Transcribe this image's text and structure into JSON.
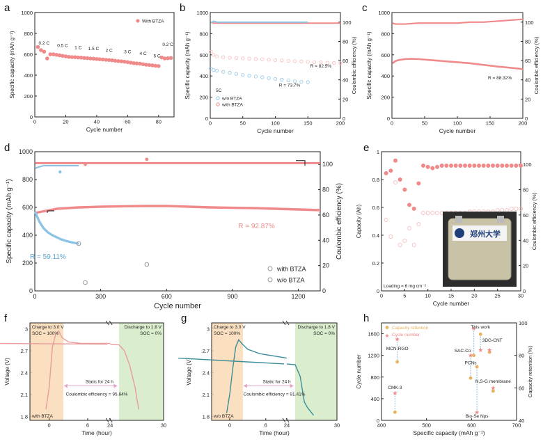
{
  "colors": {
    "pink": "#f08a8a",
    "pink_light": "#f7b9b9",
    "blue": "#8cc4e6",
    "blue_dark": "#5aa6d4",
    "teal": "#3a8f9a",
    "orange_band": "#f9d9b5",
    "green_band": "#d6ecc8",
    "gold": "#e9b25f",
    "axis": "#222222"
  },
  "chart_data": [
    {
      "panel": "a",
      "type": "scatter",
      "xlabel": "Cycle number",
      "ylabel": "Specific capacity (mAh g⁻¹)",
      "xlim": [
        0,
        90
      ],
      "ylim": [
        0,
        1000
      ],
      "xticks": [
        0,
        20,
        40,
        60,
        80
      ],
      "yticks": [
        0,
        200,
        400,
        600,
        800,
        1000
      ],
      "series": [
        {
          "name": "With BTZA",
          "x": [
            2,
            4,
            6,
            8,
            10,
            12,
            14,
            16,
            18,
            20,
            22,
            24,
            26,
            28,
            30,
            32,
            34,
            36,
            38,
            40,
            42,
            44,
            46,
            48,
            50,
            52,
            54,
            56,
            58,
            60,
            62,
            64,
            66,
            68,
            70,
            72,
            74,
            76,
            78,
            80,
            82,
            84,
            86,
            88
          ],
          "y": [
            670,
            640,
            625,
            560,
            600,
            600,
            595,
            590,
            585,
            580,
            575,
            573,
            572,
            570,
            568,
            565,
            563,
            560,
            558,
            555,
            552,
            550,
            547,
            545,
            542,
            538,
            535,
            532,
            529,
            525,
            520,
            515,
            512,
            510,
            505,
            500,
            497,
            494,
            490,
            487,
            570,
            560,
            562,
            565
          ]
        }
      ],
      "annotations": [
        {
          "text": "0.2 C",
          "x": 6,
          "y": 655
        },
        {
          "text": "0.5 C",
          "x": 18,
          "y": 630
        },
        {
          "text": "1 C",
          "x": 28,
          "y": 610
        },
        {
          "text": "1.5 C",
          "x": 38,
          "y": 600
        },
        {
          "text": "2 C",
          "x": 48,
          "y": 585
        },
        {
          "text": "3 C",
          "x": 60,
          "y": 570
        },
        {
          "text": "4 C",
          "x": 70,
          "y": 555
        },
        {
          "text": "5 C",
          "x": 79,
          "y": 530
        },
        {
          "text": "0.2 C",
          "x": 86,
          "y": 640
        }
      ]
    },
    {
      "panel": "b",
      "type": "scatter",
      "xlabel": "Cycle number",
      "ylabel": "Specific capacity (mAh g⁻¹)",
      "y2label": "Coulombic efficiency (%)",
      "xlim": [
        0,
        200
      ],
      "ylim": [
        0,
        1000
      ],
      "y2lim": [
        0,
        110
      ],
      "xticks": [
        0,
        50,
        100,
        150,
        200
      ],
      "yticks": [
        0,
        200,
        400,
        600,
        800,
        1000
      ],
      "y2ticks": [
        0,
        20,
        40,
        60,
        80,
        100
      ],
      "legend_title": "5C",
      "series": [
        {
          "name": "w/o BTZA",
          "axis": "left",
          "x": [
            1,
            5,
            10,
            20,
            30,
            40,
            50,
            60,
            70,
            80,
            90,
            100,
            110,
            120,
            130,
            140,
            150
          ],
          "y": [
            470,
            455,
            450,
            440,
            430,
            420,
            410,
            402,
            395,
            388,
            380,
            372,
            365,
            358,
            350,
            345,
            342
          ]
        },
        {
          "name": "with BTZA",
          "axis": "left",
          "x": [
            1,
            5,
            10,
            20,
            30,
            40,
            50,
            60,
            70,
            80,
            90,
            100,
            110,
            120,
            130,
            140,
            150,
            160,
            170,
            180,
            190,
            200
          ],
          "y": [
            630,
            600,
            585,
            578,
            573,
            570,
            567,
            564,
            560,
            557,
            554,
            550,
            547,
            543,
            540,
            537,
            534,
            531,
            528,
            525,
            523,
            521
          ]
        },
        {
          "name": "w/o BTZA CE",
          "axis": "right",
          "x": [
            1,
            5,
            10,
            20,
            40,
            60,
            80,
            100,
            120,
            140,
            150
          ],
          "y": [
            99,
            101,
            100,
            100,
            100,
            100,
            100,
            100,
            100,
            100,
            100
          ]
        },
        {
          "name": "with BTZA CE",
          "axis": "right",
          "x": [
            1,
            5,
            10,
            20,
            40,
            60,
            80,
            100,
            120,
            140,
            160,
            180,
            200
          ],
          "y": [
            100,
            99,
            99,
            99,
            99,
            99,
            99,
            99,
            99,
            99,
            99,
            99,
            99
          ]
        }
      ],
      "annotations": [
        {
          "text": "R = 82.5%",
          "x": 170,
          "y": 480
        },
        {
          "text": "R = 73.7%",
          "x": 122,
          "y": 300
        }
      ]
    },
    {
      "panel": "c",
      "type": "scatter",
      "xlabel": "Cycle number",
      "ylabel": "Specific capacity (mAh g⁻¹)",
      "y2label": "Coulombic efficiency (%)",
      "xlim": [
        0,
        200
      ],
      "ylim": [
        0,
        1000
      ],
      "y2lim": [
        0,
        110
      ],
      "xticks": [
        0,
        50,
        100,
        150,
        200
      ],
      "yticks": [
        0,
        200,
        400,
        600,
        800,
        1000
      ],
      "y2ticks": [
        0,
        20,
        40,
        60,
        80,
        100
      ],
      "series": [
        {
          "name": "capacity",
          "axis": "left",
          "x": [
            1,
            5,
            10,
            20,
            30,
            40,
            50,
            60,
            70,
            80,
            90,
            100,
            110,
            120,
            130,
            140,
            150,
            160,
            170,
            180,
            190,
            200
          ],
          "y": [
            520,
            540,
            550,
            560,
            562,
            560,
            555,
            550,
            545,
            540,
            535,
            530,
            525,
            520,
            512,
            505,
            498,
            490,
            485,
            478,
            472,
            465
          ]
        },
        {
          "name": "CE",
          "axis": "right",
          "x": [
            1,
            5,
            10,
            20,
            40,
            60,
            80,
            100,
            120,
            140,
            160,
            180,
            200
          ],
          "y": [
            99,
            98,
            98,
            98,
            99,
            99,
            99,
            99,
            100,
            100,
            101,
            102,
            103
          ]
        }
      ],
      "annotations": [
        {
          "text": "R = 88.32%",
          "x": 165,
          "y": 370
        }
      ]
    },
    {
      "panel": "d",
      "type": "scatter",
      "xlabel": "Cycle number",
      "ylabel": "Specific capacity (mAh g⁻¹)",
      "y2label": "Coulombic efficiency (%)",
      "xlim": [
        0,
        1300
      ],
      "ylim": [
        0,
        1000
      ],
      "y2lim": [
        0,
        110
      ],
      "xticks": [
        0,
        300,
        600,
        900,
        1200
      ],
      "yticks": [
        0,
        200,
        400,
        600,
        800,
        1000
      ],
      "y2ticks": [
        0,
        20,
        40,
        60,
        80,
        100
      ],
      "series": [
        {
          "name": "with BTZA",
          "axis": "left",
          "x": [
            1,
            50,
            100,
            200,
            300,
            400,
            500,
            600,
            700,
            800,
            900,
            1000,
            1100,
            1200,
            1300
          ],
          "y": [
            560,
            575,
            590,
            600,
            605,
            608,
            610,
            610,
            605,
            600,
            597,
            595,
            590,
            585,
            580
          ]
        },
        {
          "name": "w/o BTZA",
          "axis": "left",
          "x": [
            1,
            20,
            40,
            60,
            80,
            100,
            120,
            140,
            160,
            180,
            200
          ],
          "y": [
            570,
            500,
            450,
            420,
            400,
            385,
            370,
            360,
            352,
            345,
            340
          ]
        },
        {
          "name": "with BTZA CE",
          "axis": "right",
          "x": [
            1,
            100,
            200,
            300,
            400,
            500,
            600,
            700,
            800,
            900,
            1000,
            1100,
            1200,
            1300
          ],
          "y": [
            101,
            101,
            101,
            101,
            101,
            101,
            101,
            101,
            101,
            101,
            101,
            101,
            101,
            101
          ]
        },
        {
          "name": "w/o BTZA CE",
          "axis": "right",
          "x": [
            1,
            20,
            40,
            60,
            80,
            100,
            140,
            200
          ],
          "y": [
            97,
            98,
            99,
            99,
            99,
            99,
            99,
            99
          ]
        }
      ],
      "annotations": [
        {
          "text": "R = 92.87%",
          "x": 1010,
          "y": 450
        },
        {
          "text": "R = 59.11%",
          "x": 60,
          "y": 230
        }
      ]
    },
    {
      "panel": "e",
      "type": "scatter",
      "xlabel": "Cycle number",
      "ylabel": "Capacity (Ah)",
      "y2label": "Coulombic efficiency (%)",
      "xlim": [
        0,
        30
      ],
      "ylim": [
        0,
        1.0
      ],
      "y2lim": [
        0,
        110
      ],
      "xticks": [
        0,
        5,
        10,
        15,
        20,
        25,
        30
      ],
      "yticks": [
        0,
        0.2,
        0.4,
        0.6,
        0.8,
        1.0
      ],
      "y2ticks": [
        0,
        20,
        40,
        60,
        80,
        100
      ],
      "series": [
        {
          "name": "capacity",
          "axis": "left",
          "x": [
            1,
            2,
            3,
            4,
            5,
            6,
            7,
            8,
            9,
            10,
            11,
            12,
            13,
            14,
            15,
            16,
            17,
            18,
            19,
            20,
            21,
            22,
            23,
            24,
            25,
            26,
            27,
            28,
            29,
            30
          ],
          "y": [
            0.51,
            0.39,
            0.78,
            0.33,
            0.36,
            0.45,
            0.33,
            0.48,
            0.56,
            0.56,
            0.56,
            0.56,
            0.56,
            0.56,
            0.56,
            0.56,
            0.56,
            0.56,
            0.57,
            0.57,
            0.57,
            0.57,
            0.57,
            0.57,
            0.58,
            0.58,
            0.58,
            0.59,
            0.59,
            0.59
          ]
        },
        {
          "name": "CE",
          "axis": "right",
          "x": [
            1,
            2,
            3,
            4,
            5,
            6,
            7,
            8,
            9,
            10,
            11,
            12,
            13,
            14,
            15,
            16,
            17,
            18,
            19,
            20,
            21,
            22,
            23,
            24,
            25,
            26,
            27,
            28,
            29,
            30
          ],
          "y": [
            93,
            95,
            103,
            88,
            80,
            68,
            65,
            85,
            99,
            98,
            97,
            98,
            99,
            99,
            99,
            99,
            99,
            99,
            99,
            99,
            99,
            99,
            99,
            99,
            99,
            99,
            99,
            99,
            99,
            99
          ]
        }
      ],
      "annotations": [
        {
          "text": "Loading = 6 mg cm⁻²",
          "x": 0.5,
          "y": 0.05
        }
      ],
      "inset_text": "郑州大学"
    },
    {
      "panel": "f",
      "type": "line",
      "xlabel": "Time (hour)",
      "ylabel": "Voltage (V)",
      "xlim": [
        -3,
        30
      ],
      "ylim": [
        1.75,
        3.08
      ],
      "xticks": [
        0,
        6,
        24,
        30
      ],
      "xticklabels": [
        "0",
        "6",
        "24",
        "30"
      ],
      "yticks": [
        1.8,
        2.1,
        2.4,
        2.7,
        3.0
      ],
      "series": [
        {
          "name": "with BTZA",
          "x": [
            -0.5,
            0,
            0.5,
            1,
            1.5,
            2,
            3,
            5,
            8,
            9.5
          ],
          "y": [
            1.9,
            2.2,
            2.75,
            2.92,
            2.97,
            2.88,
            2.82,
            2.8,
            2.8,
            2.8
          ]
        }
      ],
      "labels": {
        "charge": "Charge to 3.0 V",
        "soc_full": "SOC = 100%",
        "discharge": "Discharge to 1.8 V",
        "soc_empty": "SOC = 0%",
        "static": "Static for 24 h",
        "ce": "Coulombic efficiency = 95.84%",
        "sample": "with BTZA"
      }
    },
    {
      "panel": "g",
      "type": "line",
      "xlabel": "Time (hour)",
      "ylabel": "Voltage (V)",
      "xlim": [
        -3,
        30
      ],
      "ylim": [
        1.75,
        3.08
      ],
      "xticks": [
        0,
        6,
        24,
        30
      ],
      "xticklabels": [
        "0",
        "6",
        "24",
        "30"
      ],
      "yticks": [
        1.8,
        2.1,
        2.4,
        2.7,
        3.0
      ],
      "series": [
        {
          "name": "w/o BTZA",
          "x": [
            -0.5,
            0,
            0.5,
            1,
            1.5,
            2,
            3,
            5,
            8,
            9.5
          ],
          "y": [
            1.85,
            2.1,
            2.45,
            2.75,
            2.85,
            2.8,
            2.72,
            2.66,
            2.62,
            2.6
          ]
        }
      ],
      "labels": {
        "charge": "Charge to 3.0 V",
        "soc_full": "SOC = 100%",
        "discharge": "Discharge to 1.8 V",
        "soc_empty": "SOC = 0%",
        "static": "Static for 24 h",
        "ce": "Coulombic efficiency = 91.41%",
        "sample": "w/o BTZA"
      }
    },
    {
      "panel": "h",
      "type": "scatter",
      "xlabel": "Specific capacity (mAh g⁻¹)",
      "ylabel": "Cycle number",
      "y2label": "Capacity retention (%)",
      "xlim": [
        400,
        700
      ],
      "ylim": [
        0,
        1800
      ],
      "y2lim": [
        40,
        100
      ],
      "xticks": [
        400,
        500,
        600,
        700
      ],
      "yticks": [
        0,
        400,
        800,
        1200,
        1600
      ],
      "y2ticks": [
        40,
        60,
        80,
        100
      ],
      "legend": [
        "Capacity retention",
        "Cycle number"
      ],
      "points": [
        {
          "label": "MCN-RGO",
          "x": 435,
          "cycle": 1500,
          "retention": 76
        },
        {
          "label": "CMK-3",
          "x": 430,
          "cycle": 500,
          "retention": 45
        },
        {
          "label": "SAC-Co",
          "x": 605,
          "cycle": 1700,
          "retention": 80
        },
        {
          "label": "This work",
          "x": 620,
          "cycle": 1300,
          "retention": 93
        },
        {
          "label": "3DG-CNT",
          "x": 640,
          "cycle": 1300,
          "retention": 82
        },
        {
          "label": "PCNs",
          "x": 598,
          "cycle": 1200,
          "retention": 66
        },
        {
          "label": "N,S-G membrane",
          "x": 648,
          "cycle": 600,
          "retention": 58
        },
        {
          "label": "Bio-Se Nps",
          "x": 612,
          "cycle": 150,
          "retention": 73
        }
      ]
    }
  ]
}
